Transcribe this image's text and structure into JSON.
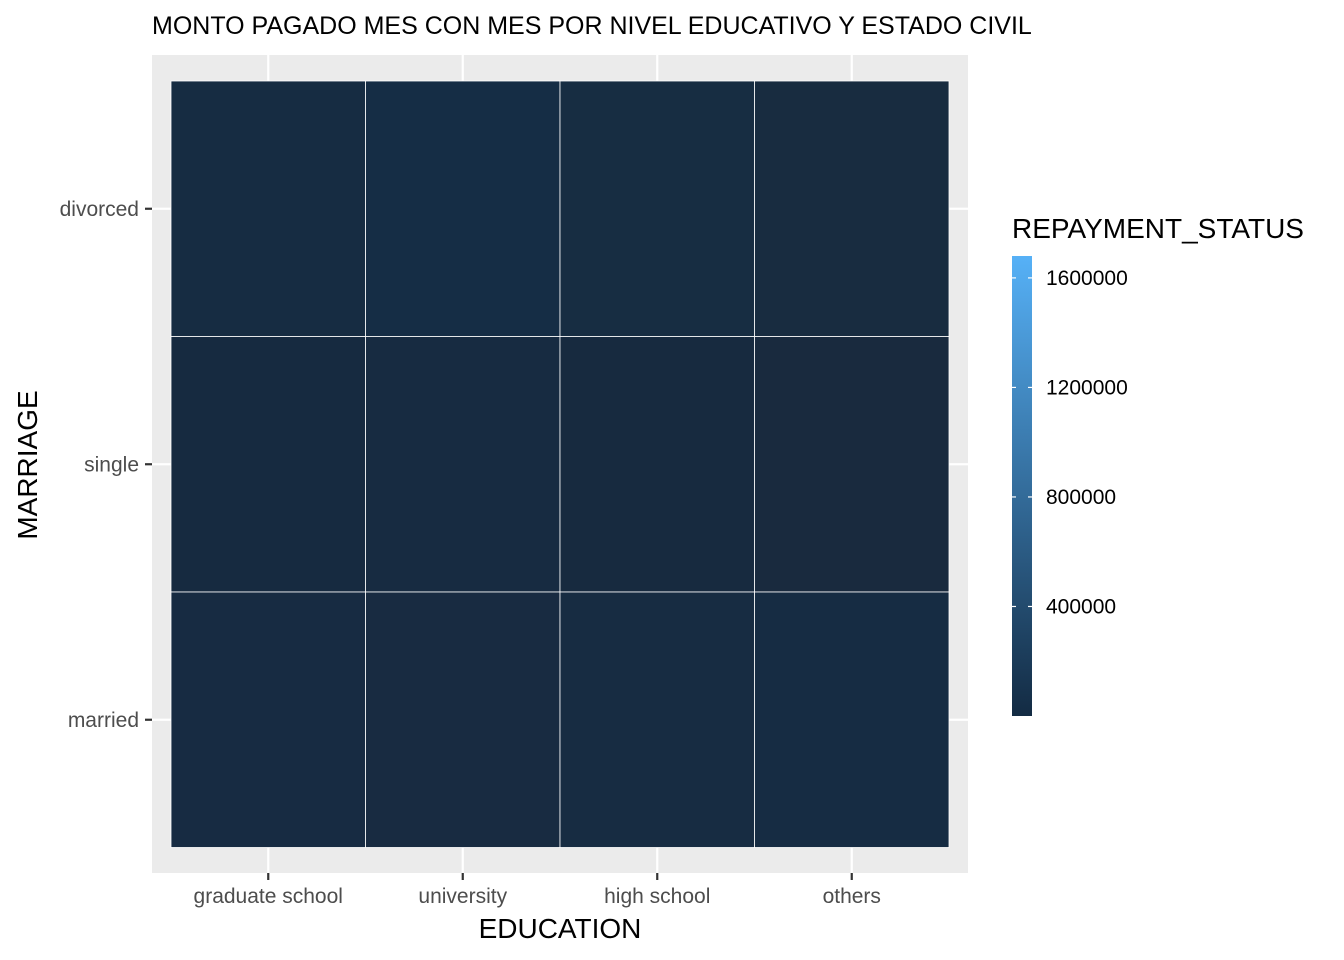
{
  "chart_data": {
    "type": "heatmap",
    "title": "MONTO PAGADO MES CON MES POR NIVEL EDUCATIVO Y ESTADO CIVIL",
    "xlabel": "EDUCATION",
    "ylabel": "MARRIAGE",
    "x_categories": [
      "graduate school",
      "university",
      "high school",
      "others"
    ],
    "y_categories": [
      "married",
      "single",
      "divorced"
    ],
    "cells": [
      {
        "x": "graduate school",
        "y": "divorced",
        "value": 15000,
        "color": "#162C42"
      },
      {
        "x": "university",
        "y": "divorced",
        "value": 60000,
        "color": "#152D45"
      },
      {
        "x": "high school",
        "y": "divorced",
        "value": 35000,
        "color": "#172D42"
      },
      {
        "x": "others",
        "y": "divorced",
        "value": 25000,
        "color": "#182C40"
      },
      {
        "x": "graduate school",
        "y": "single",
        "value": 20000,
        "color": "#162A40"
      },
      {
        "x": "university",
        "y": "single",
        "value": 45000,
        "color": "#172B41"
      },
      {
        "x": "high school",
        "y": "single",
        "value": 30000,
        "color": "#172A3F"
      },
      {
        "x": "others",
        "y": "single",
        "value": 10000,
        "color": "#192A3E"
      },
      {
        "x": "graduate school",
        "y": "married",
        "value": 25000,
        "color": "#172B42"
      },
      {
        "x": "university",
        "y": "married",
        "value": 20000,
        "color": "#182B41"
      },
      {
        "x": "high school",
        "y": "married",
        "value": 25000,
        "color": "#172C42"
      },
      {
        "x": "others",
        "y": "married",
        "value": 30000,
        "color": "#162C43"
      }
    ],
    "legend": {
      "title": "REPAYMENT_STATUS",
      "ticks": [
        400000,
        800000,
        1200000,
        1600000
      ],
      "tick_labels": [
        "400000",
        "800000",
        "1200000",
        "1600000"
      ],
      "range": [
        0,
        1680000
      ],
      "low_color": "#132B43",
      "high_color": "#56B1F7",
      "placement": "right"
    },
    "grid": true,
    "panel_background": "#EBEBEB"
  }
}
